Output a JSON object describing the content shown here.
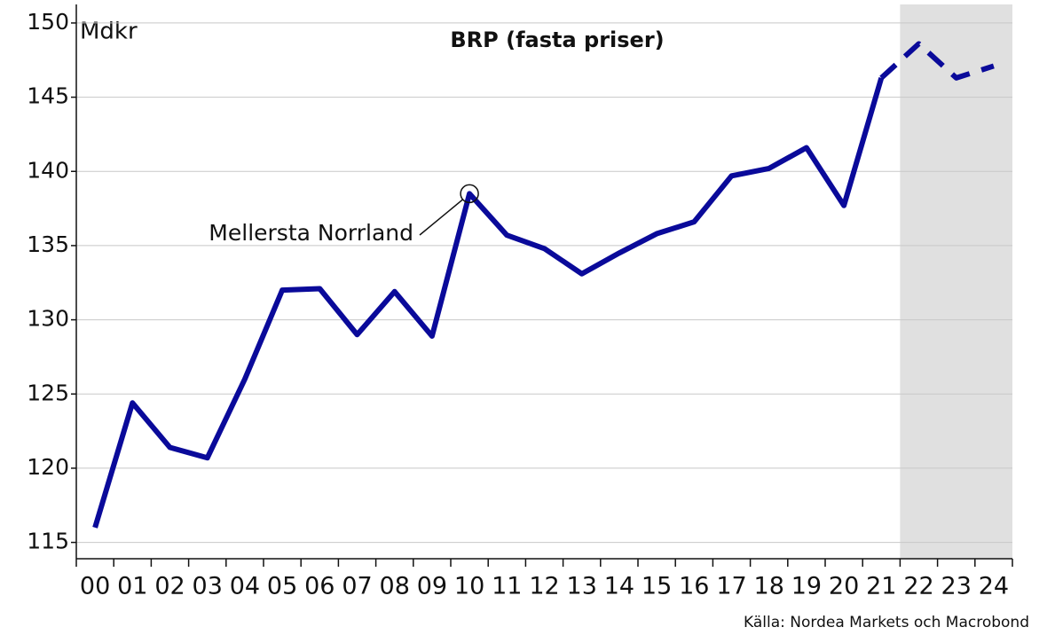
{
  "chart_data": {
    "type": "line",
    "title": "BRP (fasta priser)",
    "y_label": "Mdkr",
    "source": "Källa: Nordea Markets och Macrobond",
    "categories": [
      "00",
      "01",
      "02",
      "03",
      "04",
      "05",
      "06",
      "07",
      "08",
      "09",
      "10",
      "11",
      "12",
      "13",
      "14",
      "15",
      "16",
      "17",
      "18",
      "19",
      "20",
      "21",
      "22",
      "23",
      "24"
    ],
    "series": [
      {
        "name": "Mellersta Norrland",
        "color": "#0a0a9a",
        "values": [
          116.0,
          124.4,
          121.4,
          120.7,
          126.0,
          132.0,
          132.1,
          129.0,
          131.9,
          128.9,
          138.5,
          135.7,
          134.8,
          133.1,
          134.5,
          135.8,
          136.6,
          139.7,
          140.2,
          141.6,
          137.7,
          146.3,
          148.6,
          146.3,
          147.1
        ]
      }
    ],
    "forecast_start_index": 22,
    "forecast_shade": "#e0e0e0",
    "annotation": {
      "text": "Mellersta Norrland",
      "index": 10
    },
    "ylim": [
      113.9,
      151.25
    ],
    "yticks": [
      115,
      120,
      125,
      130,
      135,
      140,
      145,
      150
    ],
    "grid": true
  }
}
